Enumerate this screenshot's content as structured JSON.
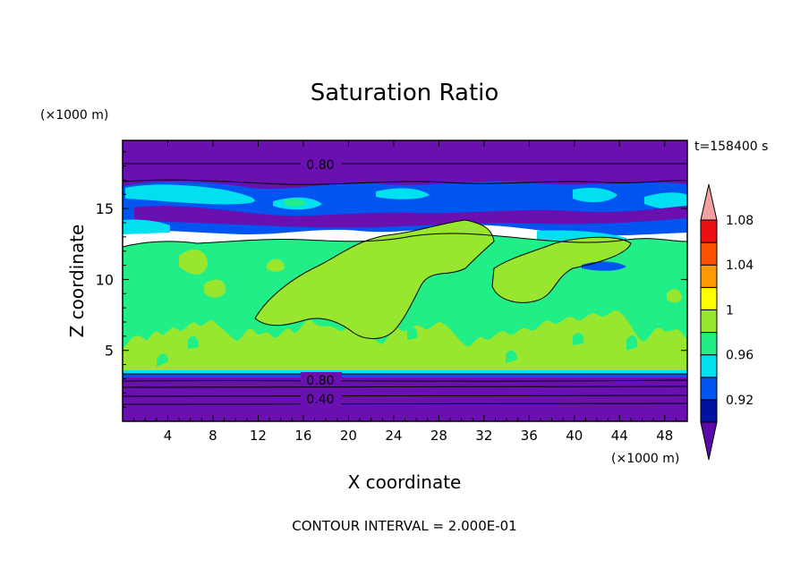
{
  "chart_data": {
    "type": "heatmap",
    "title": "Saturation Ratio",
    "time_label": "t=158400 s",
    "xlabel": "X coordinate",
    "ylabel": "Z coordinate",
    "x_unit": "(×1000 m)",
    "y_unit": "(×1000 m)",
    "xlim": [
      0,
      50
    ],
    "ylim": [
      0,
      19.8
    ],
    "x_ticks": [
      4,
      8,
      12,
      16,
      20,
      24,
      28,
      32,
      36,
      40,
      44,
      48
    ],
    "y_ticks": [
      5,
      10,
      15
    ],
    "footer": "CONTOUR INTERVAL = 2.000E-01",
    "contour_labels": [
      {
        "text": "0.80",
        "x": 17.5,
        "z": 18.0
      },
      {
        "text": "0.80",
        "x": 17.5,
        "z": 2.8
      },
      {
        "text": "0.40",
        "x": 17.5,
        "z": 1.7
      }
    ],
    "colorbar": {
      "levels": [
        0.92,
        0.96,
        1,
        1.04,
        1.08
      ],
      "tick_labels": [
        "0.92",
        "0.96",
        "1",
        "1.04",
        "1.08"
      ],
      "colors": [
        "#5a0aa8",
        "#0012a0",
        "#0055f0",
        "#00e0f0",
        "#22ee88",
        "#99e62e",
        "#ffff00",
        "#ff9d00",
        "#ff5200",
        "#ee1010",
        "#f2a0a0"
      ],
      "extend": "both"
    },
    "layers": [
      {
        "z": [
          0.0,
          3.3
        ],
        "value": "< 0.92",
        "color": "#6a10b0"
      },
      {
        "z": [
          3.3,
          3.6
        ],
        "value": "0.96",
        "color": "#0055f0"
      },
      {
        "z": [
          3.6,
          12.2
        ],
        "value": "1",
        "color": "#22ee88"
      },
      {
        "z": [
          4.0,
          12.2
        ],
        "value": "1 – 1.02 (patches)",
        "color": "#99e62e"
      },
      {
        "z": [
          12.2,
          15.5
        ],
        "value": "0.92 – 0.96",
        "color": "#0055f0"
      },
      {
        "z": [
          15.5,
          17.5
        ],
        "value": "0.92",
        "color": "#0012a0"
      },
      {
        "z": [
          17.5,
          19.8
        ],
        "value": "< 0.92",
        "color": "#6a10b0"
      }
    ]
  }
}
